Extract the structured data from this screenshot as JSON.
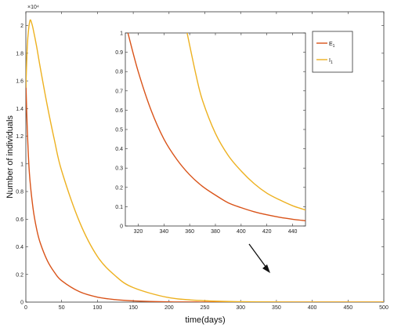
{
  "chart_data": [
    {
      "type": "line",
      "xlabel": "time(days)",
      "ylabel": "Number of individuals",
      "xlim": [
        0,
        500
      ],
      "ylim": [
        0,
        21000
      ],
      "exponent_label": "×10⁴",
      "xticks": [
        "0",
        "50",
        "100",
        "150",
        "200",
        "250",
        "300",
        "350",
        "400",
        "450",
        "500"
      ],
      "yticks": [
        "0",
        "0.2",
        "0.4",
        "0.6",
        "0.8",
        "1",
        "1.2",
        "1.4",
        "1.6",
        "1.8",
        "2"
      ],
      "series": [
        {
          "name": "E₁",
          "color": "#d95319",
          "x": [
            0,
            2,
            5,
            10,
            15,
            20,
            30,
            40,
            50,
            75,
            100,
            125,
            150,
            200,
            250,
            300,
            350,
            400,
            450,
            500
          ],
          "y": [
            16000,
            12500,
            9300,
            6800,
            5300,
            4300,
            3000,
            2150,
            1550,
            750,
            360,
            180,
            90,
            20,
            5,
            1,
            0.3,
            0.07,
            0.02,
            0
          ]
        },
        {
          "name": "I₁",
          "color": "#edb120",
          "x": [
            0,
            2,
            4,
            6,
            8,
            10,
            15,
            20,
            30,
            40,
            50,
            75,
            100,
            125,
            150,
            200,
            250,
            300,
            350,
            400,
            450,
            500
          ],
          "y": [
            15500,
            18500,
            19800,
            20400,
            20200,
            19800,
            18500,
            17000,
            14200,
            11700,
            9500,
            5800,
            3300,
            1900,
            1050,
            320,
            100,
            32,
            10,
            3.2,
            0.9,
            0
          ]
        }
      ],
      "legend_position": "top-right",
      "grid": false
    },
    {
      "type": "line",
      "xlim": [
        310,
        450
      ],
      "ylim": [
        0,
        1
      ],
      "xticks": [
        "320",
        "340",
        "360",
        "380",
        "400",
        "420",
        "440"
      ],
      "yticks": [
        "0",
        "0.1",
        "0.2",
        "0.3",
        "0.4",
        "0.5",
        "0.6",
        "0.7",
        "0.8",
        "0.9",
        "1"
      ],
      "series": [
        {
          "name": "E₁",
          "color": "#d95319",
          "x": [
            312,
            320,
            330,
            340,
            350,
            360,
            370,
            380,
            390,
            400,
            410,
            420,
            430,
            440,
            450
          ],
          "y": [
            1.0,
            0.8,
            0.6,
            0.45,
            0.345,
            0.265,
            0.205,
            0.16,
            0.12,
            0.095,
            0.074,
            0.058,
            0.045,
            0.035,
            0.027
          ]
        },
        {
          "name": "I₁",
          "color": "#edb120",
          "x": [
            358,
            365,
            370,
            380,
            390,
            400,
            410,
            420,
            430,
            440,
            450
          ],
          "y": [
            1.0,
            0.78,
            0.65,
            0.48,
            0.365,
            0.285,
            0.22,
            0.17,
            0.135,
            0.105,
            0.083
          ]
        }
      ],
      "grid": false
    }
  ],
  "legend": {
    "items": [
      {
        "label": "E",
        "sub": "1",
        "color": "#d95319"
      },
      {
        "label": "I",
        "sub": "1",
        "color": "#edb120"
      }
    ]
  }
}
